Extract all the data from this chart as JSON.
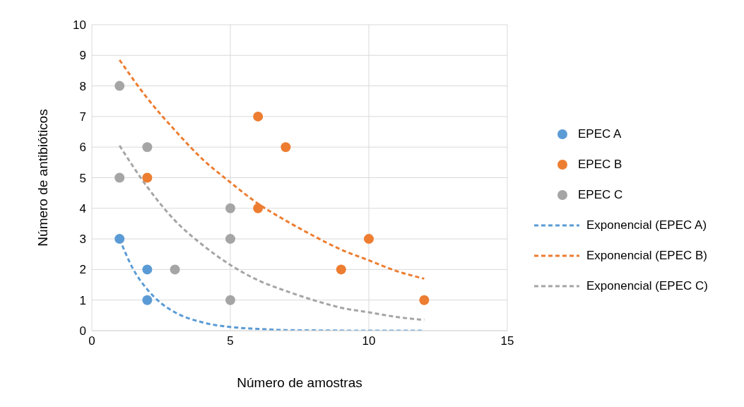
{
  "chart_data": {
    "type": "scatter",
    "xlabel": "Número de amostras",
    "ylabel": "Número de antibióticos",
    "xlim": [
      0,
      15
    ],
    "xticks": [
      0,
      5,
      10,
      15
    ],
    "ylim": [
      0,
      10
    ],
    "yticks": [
      0,
      1,
      2,
      3,
      4,
      5,
      6,
      7,
      8,
      9,
      10
    ],
    "grid": true,
    "legend": "right",
    "marker": "circle",
    "series": [
      {
        "name": "EPEC A",
        "color": "#5b9bd5",
        "x": [
          1,
          2,
          2
        ],
        "values": [
          3,
          2,
          1
        ]
      },
      {
        "name": "EPEC B",
        "color": "#ed7d31",
        "x": [
          2,
          6,
          7,
          6,
          10,
          9,
          12
        ],
        "values": [
          5,
          7,
          6,
          4,
          3,
          2,
          1
        ]
      },
      {
        "name": "EPEC C",
        "color": "#a5a5a5",
        "x": [
          1,
          2,
          1,
          5,
          5,
          3,
          5
        ],
        "values": [
          8,
          6,
          5,
          4,
          3,
          2,
          1
        ]
      },
      {
        "name": "Exponencial (EPEC A)",
        "type": "line",
        "marker": "none",
        "line_style": "dashed",
        "color": "#5b9bd5",
        "x": [
          1,
          1.5,
          2,
          2.5,
          3,
          4,
          5,
          6,
          7,
          8,
          10,
          12
        ],
        "values": [
          3,
          2,
          1.35,
          0.9,
          0.6,
          0.27,
          0.12,
          0.06,
          0.02,
          0.01,
          0,
          0
        ]
      },
      {
        "name": "Exponencial (EPEC B)",
        "type": "line",
        "marker": "none",
        "line_style": "dashed",
        "color": "#ed7d31",
        "x": [
          1,
          2,
          3,
          4,
          5,
          6,
          7,
          8,
          9,
          10,
          11,
          12
        ],
        "values": [
          8.85,
          7.6,
          6.55,
          5.6,
          4.85,
          4.15,
          3.6,
          3.1,
          2.65,
          2.3,
          1.95,
          1.7
        ]
      },
      {
        "name": "Exponencial (EPEC C)",
        "type": "line",
        "marker": "none",
        "line_style": "dashed",
        "color": "#a5a5a5",
        "x": [
          1,
          2,
          3,
          4,
          5,
          6,
          7,
          8,
          9,
          10,
          11,
          12
        ],
        "values": [
          6.05,
          4.7,
          3.6,
          2.8,
          2.15,
          1.65,
          1.3,
          1,
          0.75,
          0.6,
          0.45,
          0.35
        ]
      }
    ]
  }
}
